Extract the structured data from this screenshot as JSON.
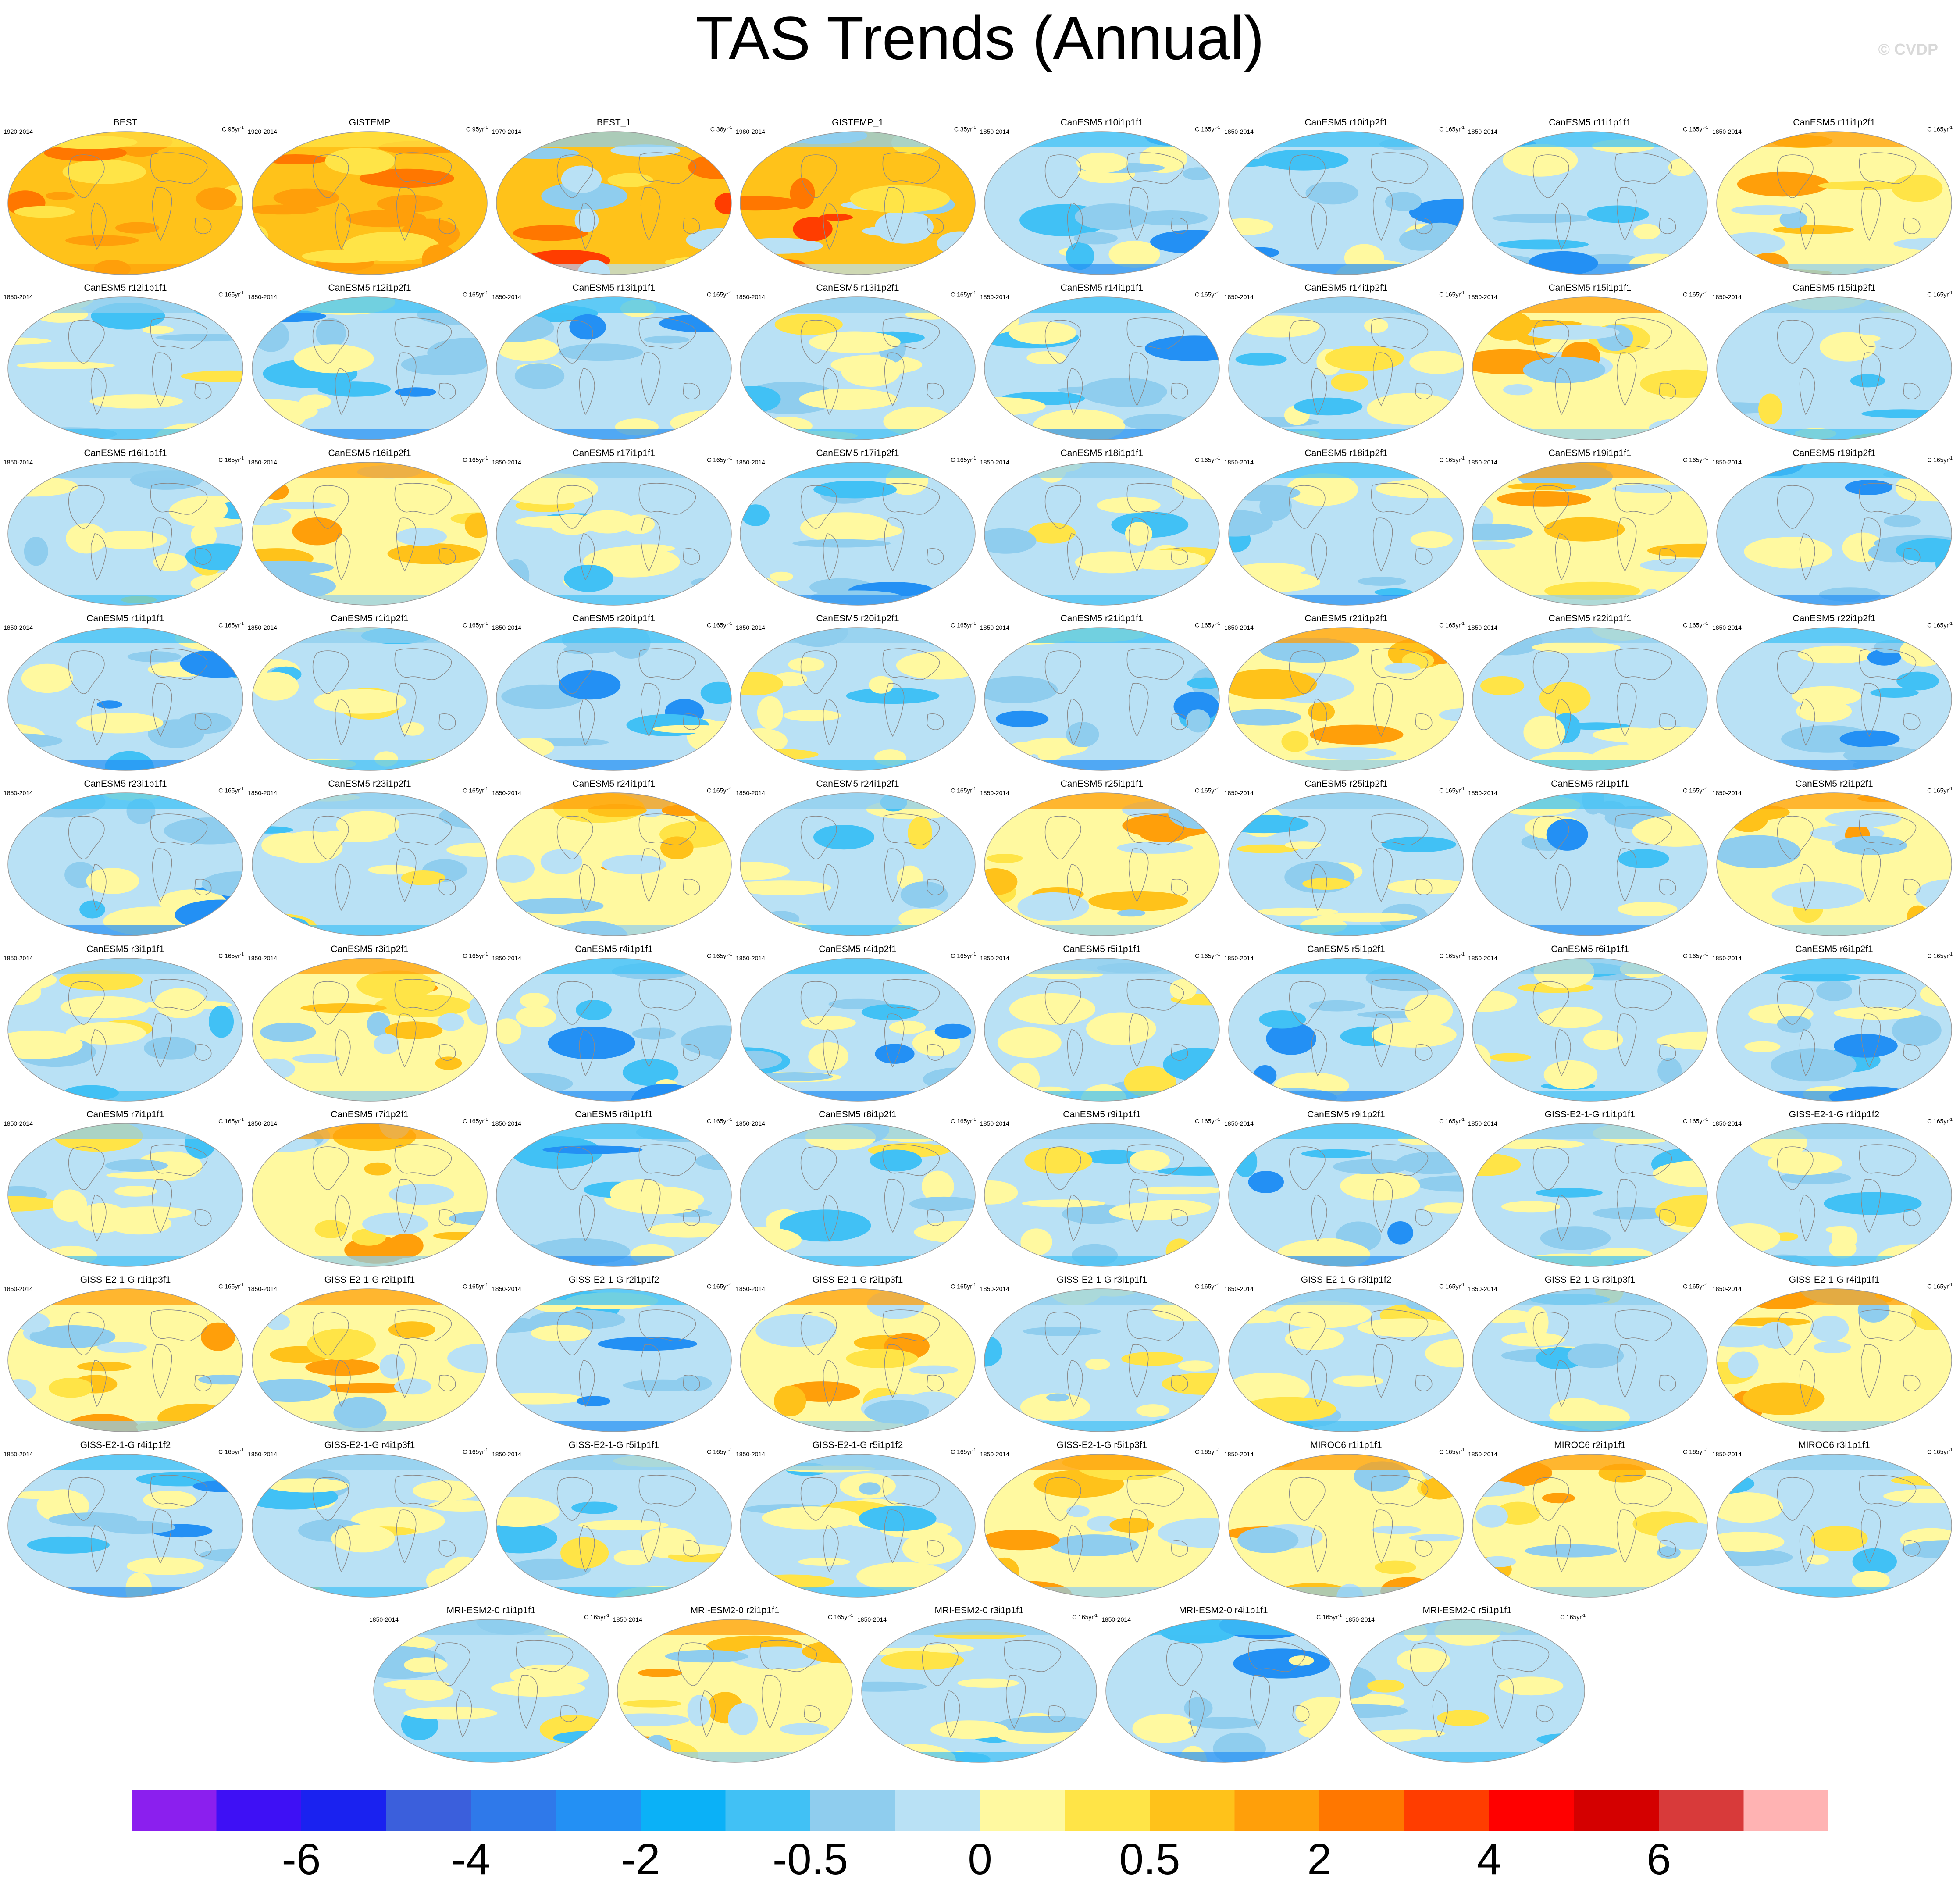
{
  "title": "TAS Trends (Annual)",
  "copyright": "© CVDP",
  "colorbar": {
    "colors": [
      "#8b1fee",
      "#3e10f5",
      "#1a22f0",
      "#3b5fdc",
      "#2f79ea",
      "#2390f4",
      "#0bb1f7",
      "#41c1f5",
      "#8fcdee",
      "#b9e1f5",
      "#fff9a0",
      "#ffe447",
      "#ffc21a",
      "#ff9f0a",
      "#ff7700",
      "#ff3d00",
      "#ff0000",
      "#d40000",
      "#d83a3a",
      "#ffb3b3"
    ],
    "labels": [
      "-6",
      "-4",
      "-2",
      "-0.5",
      "0",
      "0.5",
      "2",
      "4",
      "6"
    ]
  },
  "panels": [
    {
      "title": "BEST",
      "period": "1920-2014",
      "units": "C 95yr",
      "style": "obs"
    },
    {
      "title": "GISTEMP",
      "period": "1920-2014",
      "units": "C 95yr",
      "style": "obs"
    },
    {
      "title": "BEST_1",
      "period": "1979-2014",
      "units": "C 36yr",
      "style": "obs2"
    },
    {
      "title": "GISTEMP_1",
      "period": "1980-2014",
      "units": "C 35yr",
      "style": "obs2"
    },
    {
      "title": "CanESM5 r10i1p1f1",
      "period": "1850-2014",
      "units": "C 165yr",
      "style": "cool"
    },
    {
      "title": "CanESM5 r10i1p2f1",
      "period": "1850-2014",
      "units": "C 165yr",
      "style": "cool"
    },
    {
      "title": "CanESM5 r11i1p1f1",
      "period": "1850-2014",
      "units": "C 165yr",
      "style": "cool"
    },
    {
      "title": "CanESM5 r11i1p2f1",
      "period": "1850-2014",
      "units": "C 165yr",
      "style": "warm"
    },
    {
      "title": "CanESM5 r12i1p1f1",
      "period": "1850-2014",
      "units": "C 165yr",
      "style": "mixed"
    },
    {
      "title": "CanESM5 r12i1p2f1",
      "period": "1850-2014",
      "units": "C 165yr",
      "style": "cool"
    },
    {
      "title": "CanESM5 r13i1p1f1",
      "period": "1850-2014",
      "units": "C 165yr",
      "style": "cool"
    },
    {
      "title": "CanESM5 r13i1p2f1",
      "period": "1850-2014",
      "units": "C 165yr",
      "style": "mixed"
    },
    {
      "title": "CanESM5 r14i1p1f1",
      "period": "1850-2014",
      "units": "C 165yr",
      "style": "cool"
    },
    {
      "title": "CanESM5 r14i1p2f1",
      "period": "1850-2014",
      "units": "C 165yr",
      "style": "mixed"
    },
    {
      "title": "CanESM5 r15i1p1f1",
      "period": "1850-2014",
      "units": "C 165yr",
      "style": "warm"
    },
    {
      "title": "CanESM5 r15i1p2f1",
      "period": "1850-2014",
      "units": "C 165yr",
      "style": "mixed"
    },
    {
      "title": "CanESM5 r16i1p1f1",
      "period": "1850-2014",
      "units": "C 165yr",
      "style": "mixed"
    },
    {
      "title": "CanESM5 r16i1p2f1",
      "period": "1850-2014",
      "units": "C 165yr",
      "style": "warm"
    },
    {
      "title": "CanESM5 r17i1p1f1",
      "period": "1850-2014",
      "units": "C 165yr",
      "style": "mixed"
    },
    {
      "title": "CanESM5 r17i1p2f1",
      "period": "1850-2014",
      "units": "C 165yr",
      "style": "cool"
    },
    {
      "title": "CanESM5 r18i1p1f1",
      "period": "1850-2014",
      "units": "C 165yr",
      "style": "mixed"
    },
    {
      "title": "CanESM5 r18i1p2f1",
      "period": "1850-2014",
      "units": "C 165yr",
      "style": "cool"
    },
    {
      "title": "CanESM5 r19i1p1f1",
      "period": "1850-2014",
      "units": "C 165yr",
      "style": "warm"
    },
    {
      "title": "CanESM5 r19i1p2f1",
      "period": "1850-2014",
      "units": "C 165yr",
      "style": "cool"
    },
    {
      "title": "CanESM5 r1i1p1f1",
      "period": "1850-2014",
      "units": "C 165yr",
      "style": "cool"
    },
    {
      "title": "CanESM5 r1i1p2f1",
      "period": "1850-2014",
      "units": "C 165yr",
      "style": "mixed"
    },
    {
      "title": "CanESM5 r20i1p1f1",
      "period": "1850-2014",
      "units": "C 165yr",
      "style": "cool"
    },
    {
      "title": "CanESM5 r20i1p2f1",
      "period": "1850-2014",
      "units": "C 165yr",
      "style": "mixed"
    },
    {
      "title": "CanESM5 r21i1p1f1",
      "period": "1850-2014",
      "units": "C 165yr",
      "style": "cool"
    },
    {
      "title": "CanESM5 r21i1p2f1",
      "period": "1850-2014",
      "units": "C 165yr",
      "style": "warm"
    },
    {
      "title": "CanESM5 r22i1p1f1",
      "period": "1850-2014",
      "units": "C 165yr",
      "style": "mixed"
    },
    {
      "title": "CanESM5 r22i1p2f1",
      "period": "1850-2014",
      "units": "C 165yr",
      "style": "cool"
    },
    {
      "title": "CanESM5 r23i1p1f1",
      "period": "1850-2014",
      "units": "C 165yr",
      "style": "cool"
    },
    {
      "title": "CanESM5 r23i1p2f1",
      "period": "1850-2014",
      "units": "C 165yr",
      "style": "mixed"
    },
    {
      "title": "CanESM5 r24i1p1f1",
      "period": "1850-2014",
      "units": "C 165yr",
      "style": "warm"
    },
    {
      "title": "CanESM5 r24i1p2f1",
      "period": "1850-2014",
      "units": "C 165yr",
      "style": "mixed"
    },
    {
      "title": "CanESM5 r25i1p1f1",
      "period": "1850-2014",
      "units": "C 165yr",
      "style": "warm"
    },
    {
      "title": "CanESM5 r25i1p2f1",
      "period": "1850-2014",
      "units": "C 165yr",
      "style": "mixed"
    },
    {
      "title": "CanESM5 r2i1p1f1",
      "period": "1850-2014",
      "units": "C 165yr",
      "style": "cool"
    },
    {
      "title": "CanESM5 r2i1p2f1",
      "period": "1850-2014",
      "units": "C 165yr",
      "style": "warm"
    },
    {
      "title": "CanESM5 r3i1p1f1",
      "period": "1850-2014",
      "units": "C 165yr",
      "style": "mixed"
    },
    {
      "title": "CanESM5 r3i1p2f1",
      "period": "1850-2014",
      "units": "C 165yr",
      "style": "warm"
    },
    {
      "title": "CanESM5 r4i1p1f1",
      "period": "1850-2014",
      "units": "C 165yr",
      "style": "cool"
    },
    {
      "title": "CanESM5 r4i1p2f1",
      "period": "1850-2014",
      "units": "C 165yr",
      "style": "cool"
    },
    {
      "title": "CanESM5 r5i1p1f1",
      "period": "1850-2014",
      "units": "C 165yr",
      "style": "mixed"
    },
    {
      "title": "CanESM5 r5i1p2f1",
      "period": "1850-2014",
      "units": "C 165yr",
      "style": "cool"
    },
    {
      "title": "CanESM5 r6i1p1f1",
      "period": "1850-2014",
      "units": "C 165yr",
      "style": "mixed"
    },
    {
      "title": "CanESM5 r6i1p2f1",
      "period": "1850-2014",
      "units": "C 165yr",
      "style": "cool"
    },
    {
      "title": "CanESM5 r7i1p1f1",
      "period": "1850-2014",
      "units": "C 165yr",
      "style": "mixed"
    },
    {
      "title": "CanESM5 r7i1p2f1",
      "period": "1850-2014",
      "units": "C 165yr",
      "style": "warm"
    },
    {
      "title": "CanESM5 r8i1p1f1",
      "period": "1850-2014",
      "units": "C 165yr",
      "style": "cool"
    },
    {
      "title": "CanESM5 r8i1p2f1",
      "period": "1850-2014",
      "units": "C 165yr",
      "style": "mixed"
    },
    {
      "title": "CanESM5 r9i1p1f1",
      "period": "1850-2014",
      "units": "C 165yr",
      "style": "mixed"
    },
    {
      "title": "CanESM5 r9i1p2f1",
      "period": "1850-2014",
      "units": "C 165yr",
      "style": "cool"
    },
    {
      "title": "GISS-E2-1-G r1i1p1f1",
      "period": "1850-2014",
      "units": "C 165yr",
      "style": "mixed"
    },
    {
      "title": "GISS-E2-1-G r1i1p1f2",
      "period": "1850-2014",
      "units": "C 165yr",
      "style": "mixed"
    },
    {
      "title": "GISS-E2-1-G r1i1p3f1",
      "period": "1850-2014",
      "units": "C 165yr",
      "style": "warm"
    },
    {
      "title": "GISS-E2-1-G r2i1p1f1",
      "period": "1850-2014",
      "units": "C 165yr",
      "style": "warm"
    },
    {
      "title": "GISS-E2-1-G r2i1p1f2",
      "period": "1850-2014",
      "units": "C 165yr",
      "style": "cool"
    },
    {
      "title": "GISS-E2-1-G r2i1p3f1",
      "period": "1850-2014",
      "units": "C 165yr",
      "style": "warm"
    },
    {
      "title": "GISS-E2-1-G r3i1p1f1",
      "period": "1850-2014",
      "units": "C 165yr",
      "style": "mixed"
    },
    {
      "title": "GISS-E2-1-G r3i1p1f2",
      "period": "1850-2014",
      "units": "C 165yr",
      "style": "mixed"
    },
    {
      "title": "GISS-E2-1-G r3i1p3f1",
      "period": "1850-2014",
      "units": "C 165yr",
      "style": "mixed"
    },
    {
      "title": "GISS-E2-1-G r4i1p1f1",
      "period": "1850-2014",
      "units": "C 165yr",
      "style": "warm"
    },
    {
      "title": "GISS-E2-1-G r4i1p1f2",
      "period": "1850-2014",
      "units": "C 165yr",
      "style": "cool"
    },
    {
      "title": "GISS-E2-1-G r4i1p3f1",
      "period": "1850-2014",
      "units": "C 165yr",
      "style": "mixed"
    },
    {
      "title": "GISS-E2-1-G r5i1p1f1",
      "period": "1850-2014",
      "units": "C 165yr",
      "style": "mixed"
    },
    {
      "title": "GISS-E2-1-G r5i1p1f2",
      "period": "1850-2014",
      "units": "C 165yr",
      "style": "mixed"
    },
    {
      "title": "GISS-E2-1-G r5i1p3f1",
      "period": "1850-2014",
      "units": "C 165yr",
      "style": "warm"
    },
    {
      "title": "MIROC6 r1i1p1f1",
      "period": "1850-2014",
      "units": "C 165yr",
      "style": "warm"
    },
    {
      "title": "MIROC6 r2i1p1f1",
      "period": "1850-2014",
      "units": "C 165yr",
      "style": "warm"
    },
    {
      "title": "MIROC6 r3i1p1f1",
      "period": "1850-2014",
      "units": "C 165yr",
      "style": "mixed"
    },
    {
      "title": "MRI-ESM2-0 r1i1p1f1",
      "period": "1850-2014",
      "units": "C 165yr",
      "style": "mixed"
    },
    {
      "title": "MRI-ESM2-0 r2i1p1f1",
      "period": "1850-2014",
      "units": "C 165yr",
      "style": "warm"
    },
    {
      "title": "MRI-ESM2-0 r3i1p1f1",
      "period": "1850-2014",
      "units": "C 165yr",
      "style": "mixed"
    },
    {
      "title": "MRI-ESM2-0 r4i1p1f1",
      "period": "1850-2014",
      "units": "C 165yr",
      "style": "cool"
    },
    {
      "title": "MRI-ESM2-0 r5i1p1f1",
      "period": "1850-2014",
      "units": "C 165yr",
      "style": "mixed"
    }
  ]
}
